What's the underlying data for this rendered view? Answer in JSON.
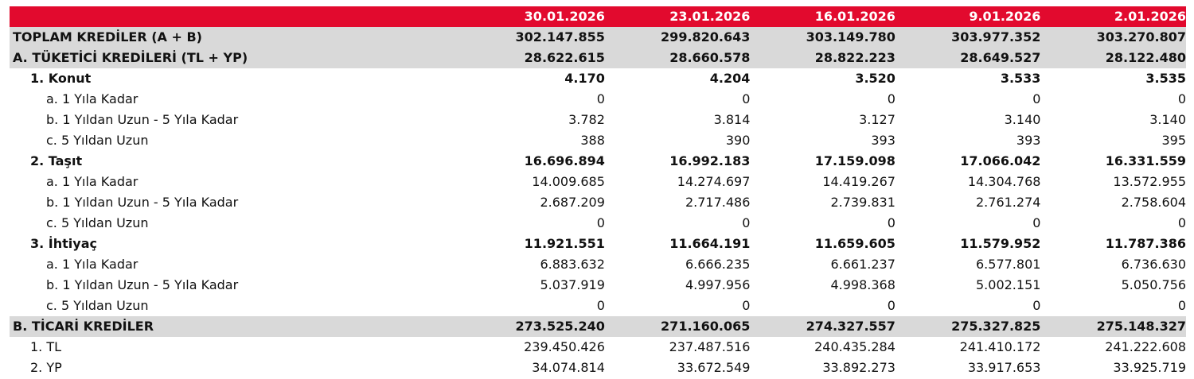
{
  "header": {
    "dates": [
      "30.01.2026",
      "23.01.2026",
      "16.01.2026",
      "9.01.2026",
      "2.01.2026"
    ]
  },
  "rows": [
    {
      "label": "TOPLAM KREDİLER (A + B)",
      "values": [
        "302.147.855",
        "299.820.643",
        "303.149.780",
        "303.977.352",
        "303.270.807"
      ]
    },
    {
      "label": "A. TÜKETİCİ KREDİLERİ (TL + YP)",
      "values": [
        "28.622.615",
        "28.660.578",
        "28.822.223",
        "28.649.527",
        "28.122.480"
      ]
    },
    {
      "label": "1. Konut",
      "values": [
        "4.170",
        "4.204",
        "3.520",
        "3.533",
        "3.535"
      ]
    },
    {
      "label": "a. 1 Yıla Kadar",
      "values": [
        "0",
        "0",
        "0",
        "0",
        "0"
      ]
    },
    {
      "label": "b. 1 Yıldan Uzun - 5 Yıla Kadar",
      "values": [
        "3.782",
        "3.814",
        "3.127",
        "3.140",
        "3.140"
      ]
    },
    {
      "label": "c. 5 Yıldan Uzun",
      "values": [
        "388",
        "390",
        "393",
        "393",
        "395"
      ]
    },
    {
      "label": "2. Taşıt",
      "values": [
        "16.696.894",
        "16.992.183",
        "17.159.098",
        "17.066.042",
        "16.331.559"
      ]
    },
    {
      "label": "a. 1 Yıla Kadar",
      "values": [
        "14.009.685",
        "14.274.697",
        "14.419.267",
        "14.304.768",
        "13.572.955"
      ]
    },
    {
      "label": "b. 1 Yıldan Uzun - 5 Yıla Kadar",
      "values": [
        "2.687.209",
        "2.717.486",
        "2.739.831",
        "2.761.274",
        "2.758.604"
      ]
    },
    {
      "label": "c. 5 Yıldan Uzun",
      "values": [
        "0",
        "0",
        "0",
        "0",
        "0"
      ]
    },
    {
      "label": "3. İhtiyaç",
      "values": [
        "11.921.551",
        "11.664.191",
        "11.659.605",
        "11.579.952",
        "11.787.386"
      ]
    },
    {
      "label": "a. 1 Yıla Kadar",
      "values": [
        "6.883.632",
        "6.666.235",
        "6.661.237",
        "6.577.801",
        "6.736.630"
      ]
    },
    {
      "label": "b. 1 Yıldan Uzun - 5 Yıla Kadar",
      "values": [
        "5.037.919",
        "4.997.956",
        "4.998.368",
        "5.002.151",
        "5.050.756"
      ]
    },
    {
      "label": "c. 5 Yıldan Uzun",
      "values": [
        "0",
        "0",
        "0",
        "0",
        "0"
      ]
    },
    {
      "label": "B. TİCARİ KREDİLER",
      "values": [
        "273.525.240",
        "271.160.065",
        "274.327.557",
        "275.327.825",
        "275.148.327"
      ]
    },
    {
      "label": "1. TL",
      "values": [
        "239.450.426",
        "237.487.516",
        "240.435.284",
        "241.410.172",
        "241.222.608"
      ]
    },
    {
      "label": "2. YP",
      "values": [
        "34.074.814",
        "33.672.549",
        "33.892.273",
        "33.917.653",
        "33.925.719"
      ]
    }
  ],
  "colors": {
    "header_background": "#e20a2e",
    "header_text": "#ffffff",
    "section_background": "#d9d9d9"
  }
}
